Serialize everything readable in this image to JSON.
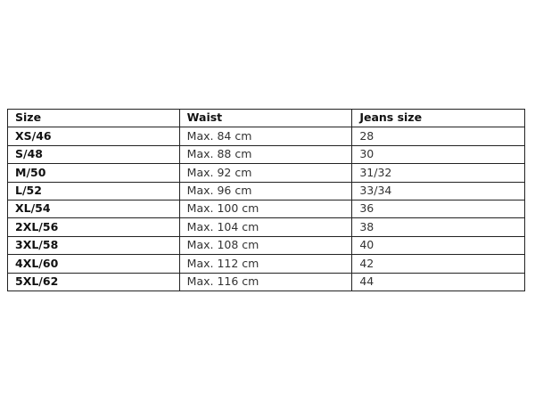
{
  "table": {
    "headers": [
      "Size",
      "Waist",
      "Jeans size"
    ],
    "rows": [
      [
        "XS/46",
        "Max. 84 cm",
        "28"
      ],
      [
        "S/48",
        "Max. 88 cm",
        "30"
      ],
      [
        "M/50",
        "Max. 92 cm",
        "31/32"
      ],
      [
        "L/52",
        "Max. 96 cm",
        "33/34"
      ],
      [
        "XL/54",
        "Max. 100 cm",
        "36"
      ],
      [
        "2XL/56",
        "Max. 104 cm",
        "38"
      ],
      [
        "3XL/58",
        "Max. 108 cm",
        "40"
      ],
      [
        "4XL/60",
        "Max. 112 cm",
        "42"
      ],
      [
        "5XL/62",
        "Max. 116 cm",
        "44"
      ]
    ]
  }
}
